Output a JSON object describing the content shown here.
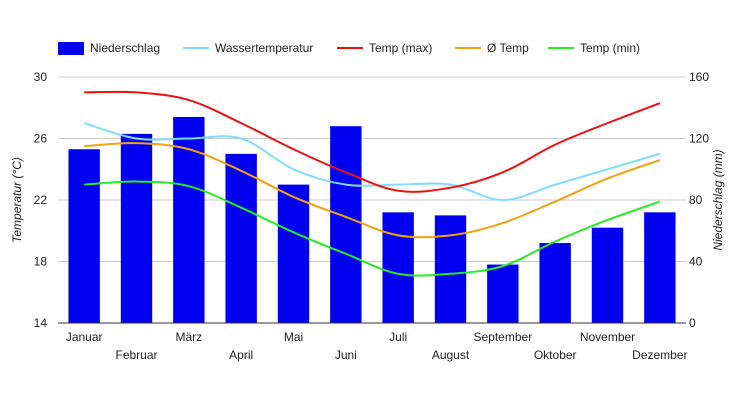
{
  "chart_data": {
    "type": "bar",
    "categories": [
      "Januar",
      "Februar",
      "März",
      "April",
      "Mai",
      "Juni",
      "Juli",
      "August",
      "September",
      "Oktober",
      "November",
      "Dezember"
    ],
    "series": [
      {
        "name": "Niederschlag",
        "type": "bar",
        "axis": "right",
        "color": "#0000f0",
        "values": [
          113,
          123,
          134,
          110,
          90,
          128,
          72,
          70,
          38,
          52,
          62,
          72
        ]
      },
      {
        "name": "Wassertemperatur",
        "type": "line",
        "axis": "left",
        "color": "#80dcff",
        "values": [
          27.0,
          26.0,
          26.0,
          26.0,
          24.0,
          23.0,
          23.0,
          23.0,
          22.0,
          23.0,
          24.0,
          25.0
        ]
      },
      {
        "name": "Temp (max)",
        "type": "line",
        "axis": "left",
        "color": "#ee1111",
        "values": [
          29.0,
          29.0,
          28.5,
          27.0,
          25.3,
          23.8,
          22.6,
          22.8,
          23.8,
          25.6,
          27.0,
          28.3
        ]
      },
      {
        "name": "Ø Temp",
        "type": "line",
        "axis": "left",
        "color": "#f5a011",
        "values": [
          25.5,
          25.7,
          25.3,
          23.9,
          22.2,
          20.9,
          19.7,
          19.7,
          20.5,
          21.9,
          23.4,
          24.6
        ]
      },
      {
        "name": "Temp (min)",
        "type": "line",
        "axis": "left",
        "color": "#22ee22",
        "values": [
          23.0,
          23.2,
          22.9,
          21.5,
          19.9,
          18.5,
          17.2,
          17.2,
          17.7,
          19.3,
          20.7,
          21.9
        ]
      }
    ],
    "ylabel_left": "Temperatur (°C)",
    "ylabel_right": "Niederschlag (mm)",
    "ylim_left": [
      14,
      30
    ],
    "yticks_left": [
      14,
      18,
      22,
      26,
      30
    ],
    "ylim_right": [
      0,
      160
    ],
    "yticks_right": [
      0,
      40,
      80,
      120,
      160
    ],
    "grid": true,
    "legend_position": "top"
  }
}
